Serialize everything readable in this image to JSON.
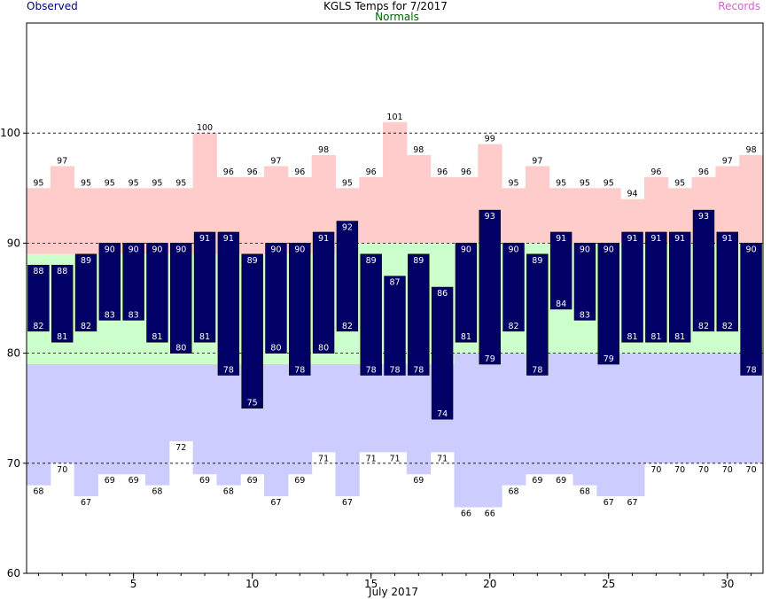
{
  "chart_data": {
    "type": "bar",
    "title": "KGLS Temps for  7/2017",
    "legend": {
      "observed": "Observed",
      "normals": "Normals",
      "records": "Records"
    },
    "xlabel": "July 2017",
    "x_ticks": [
      5,
      10,
      15,
      20,
      25,
      30
    ],
    "y_ticks": [
      60,
      70,
      80,
      90,
      100
    ],
    "ylim": [
      60,
      110
    ],
    "xlim": [
      0.5,
      31.5
    ],
    "dashed_gridlines": [
      70,
      80,
      90,
      100
    ],
    "days": [
      1,
      2,
      3,
      4,
      5,
      6,
      7,
      8,
      9,
      10,
      11,
      12,
      13,
      14,
      15,
      16,
      17,
      18,
      19,
      20,
      21,
      22,
      23,
      24,
      25,
      26,
      27,
      28,
      29,
      30,
      31
    ],
    "observed_high": [
      88,
      88,
      89,
      90,
      90,
      90,
      90,
      91,
      91,
      89,
      90,
      90,
      91,
      92,
      89,
      87,
      89,
      86,
      90,
      93,
      90,
      89,
      91,
      90,
      90,
      91,
      91,
      91,
      93,
      91,
      90
    ],
    "observed_low": [
      82,
      81,
      82,
      83,
      83,
      81,
      80,
      81,
      78,
      75,
      80,
      78,
      80,
      82,
      78,
      78,
      78,
      74,
      81,
      79,
      82,
      78,
      84,
      83,
      79,
      81,
      81,
      81,
      82,
      82,
      78
    ],
    "normal_high": [
      89,
      89,
      89,
      89,
      89,
      89,
      89,
      89,
      89,
      89,
      89,
      89,
      89,
      90,
      90,
      90,
      90,
      90,
      90,
      90,
      90,
      90,
      90,
      90,
      90,
      90,
      90,
      90,
      90,
      90,
      90
    ],
    "normal_low": [
      79,
      79,
      79,
      79,
      79,
      79,
      79,
      79,
      79,
      79,
      79,
      79,
      79,
      79,
      79,
      79,
      79,
      79,
      80,
      80,
      80,
      80,
      80,
      80,
      80,
      80,
      80,
      80,
      80,
      80,
      80
    ],
    "record_high": [
      95,
      97,
      95,
      95,
      95,
      95,
      95,
      100,
      96,
      96,
      97,
      96,
      98,
      95,
      96,
      101,
      98,
      96,
      96,
      99,
      95,
      97,
      95,
      95,
      95,
      94,
      96,
      95,
      96,
      97,
      98
    ],
    "record_low": [
      68,
      70,
      67,
      69,
      69,
      68,
      72,
      69,
      68,
      69,
      67,
      69,
      71,
      67,
      71,
      71,
      69,
      71,
      66,
      66,
      68,
      69,
      69,
      68,
      67,
      67,
      70,
      70,
      70,
      70,
      70
    ],
    "colors": {
      "observed": "#000066",
      "normals": "#ccffcc",
      "record_high_band": "#ffcccc",
      "record_low_band": "#ccccff",
      "observed_legend_text": "#000080",
      "normals_legend_text": "#006600",
      "records_legend_text": "#cc66cc"
    }
  }
}
